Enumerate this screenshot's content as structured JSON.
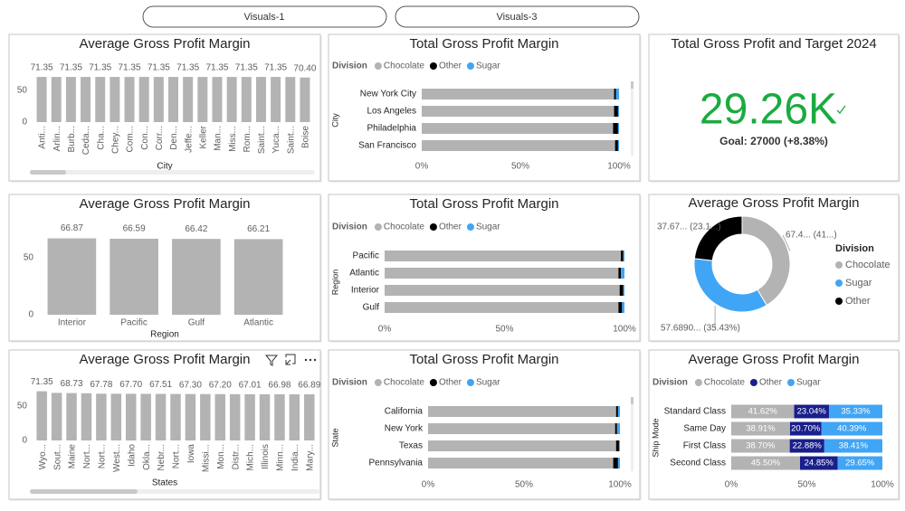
{
  "buttons": [
    "Visuals-1",
    "Visuals-3"
  ],
  "chart_data": [
    {
      "type": "bar",
      "title": "Average Gross Profit Margin",
      "x_label": "City",
      "categories": [
        "Anti...",
        "Arlin...",
        "Burb...",
        "Ceda...",
        "Cha...",
        "Chey...",
        "Com...",
        "Con...",
        "Corr...",
        "Den...",
        "Jeffe...",
        "Keller",
        "Man...",
        "Miss...",
        "Rom...",
        "Saint...",
        "Yuca...",
        "Saint...",
        "Boise"
      ],
      "values": [
        71.35,
        71.35,
        71.35,
        71.35,
        71.35,
        71.35,
        71.35,
        71.35,
        71.35,
        71.35,
        71.35,
        71.35,
        71.35,
        71.35,
        71.35,
        71.35,
        71.35,
        71.2,
        70.4
      ],
      "value_labels": [
        "71.35",
        null,
        "71.35",
        null,
        "71.35",
        null,
        "71.35",
        null,
        "71.35",
        null,
        "71.35",
        null,
        "71.35",
        null,
        "71.35",
        null,
        "71.35",
        null,
        "70.40"
      ],
      "color": "#b3b3b3",
      "ylim": [
        0,
        80
      ],
      "yticks": [
        0,
        50
      ]
    },
    {
      "type": "stacked_bar_100",
      "title": "Total Gross Profit Margin",
      "legend_title": "Division",
      "y_label": "City",
      "categories": [
        "New York City",
        "Los Angeles",
        "Philadelphia",
        "San Francisco"
      ],
      "series": [
        {
          "name": "Chocolate",
          "color": "#b3b3b3",
          "values": [
            97.5,
            97.5,
            97,
            98
          ]
        },
        {
          "name": "Other",
          "color": "#000000",
          "values": [
            1,
            2,
            2.5,
            1.5
          ]
        },
        {
          "name": "Sugar",
          "color": "#41a5f5",
          "values": [
            1.5,
            0.5,
            0.5,
            0.5
          ]
        }
      ],
      "xlim": [
        0,
        100
      ],
      "xticks": [
        {
          "value": 0,
          "label": "0%"
        },
        {
          "value": 50,
          "label": "50%"
        },
        {
          "value": 100,
          "label": "100%"
        }
      ]
    },
    {
      "type": "card",
      "title": "Total Gross Profit and Target 2024",
      "value": 29260,
      "value_label": "29.26K",
      "goal": "Goal: 27000 (+8.38%)",
      "color": "#1aab40"
    },
    {
      "type": "bar",
      "title": "Average Gross Profit Margin",
      "x_label": "Region",
      "categories": [
        "Interior",
        "Pacific",
        "Gulf",
        "Atlantic"
      ],
      "values": [
        66.87,
        66.59,
        66.42,
        66.21
      ],
      "color": "#b3b3b3",
      "ylim": [
        0,
        80
      ],
      "yticks": [
        0,
        50
      ]
    },
    {
      "type": "stacked_bar_100",
      "title": "Total Gross Profit Margin",
      "legend_title": "Division",
      "y_label": "Region",
      "categories": [
        "Pacific",
        "Atlantic",
        "Interior",
        "Gulf"
      ],
      "series": [
        {
          "name": "Chocolate",
          "color": "#b3b3b3",
          "values": [
            98.5,
            97.5,
            98,
            97.5
          ]
        },
        {
          "name": "Other",
          "color": "#000000",
          "values": [
            1,
            1,
            1.5,
            1.5
          ]
        },
        {
          "name": "Sugar",
          "color": "#41a5f5",
          "values": [
            0.5,
            1.5,
            0.5,
            1
          ]
        }
      ],
      "xlim": [
        0,
        100
      ],
      "xticks": [
        {
          "value": 0,
          "label": "0%"
        },
        {
          "value": 50,
          "label": "50%"
        },
        {
          "value": 100,
          "label": "100%"
        }
      ]
    },
    {
      "type": "donut",
      "title": "Average Gross Profit Margin",
      "legend_title": "Division",
      "categories": [
        "Chocolate",
        "Sugar",
        "Other"
      ],
      "values": [
        67.4,
        57.689,
        37.67
      ],
      "value_labels": [
        "67.4... (41...)",
        "57.6890... (35.43%)",
        "37.67... (23.1...)"
      ],
      "colors": [
        "#b3b3b3",
        "#41a5f5",
        "#000000"
      ]
    },
    {
      "type": "bar",
      "title": "Average Gross Profit Margin",
      "x_label": "States",
      "categories": [
        "Wyo...",
        "Sout...",
        "Maine",
        "Nort...",
        "Nort...",
        "West...",
        "Idaho",
        "Okla...",
        "Nebr...",
        "Nort...",
        "Iowa",
        "Missi...",
        "Mon...",
        "Distr...",
        "Mich...",
        "Illinois",
        "Minn...",
        "India...",
        "Mary..."
      ],
      "values": [
        71.35,
        69,
        68.73,
        68.5,
        67.78,
        67.75,
        67.7,
        67.6,
        67.51,
        67.4,
        67.3,
        67.25,
        67.2,
        67.1,
        67.01,
        67,
        66.98,
        66.9,
        66.89
      ],
      "value_labels": [
        "71.35",
        null,
        "68.73",
        null,
        "67.78",
        null,
        "67.70",
        null,
        "67.51",
        null,
        "67.30",
        null,
        "67.20",
        null,
        "67.01",
        null,
        "66.98",
        null,
        "66.89"
      ],
      "color": "#b3b3b3",
      "ylim": [
        0,
        80
      ],
      "yticks": [
        0,
        50
      ]
    },
    {
      "type": "stacked_bar_100",
      "title": "Total Gross Profit Margin",
      "legend_title": "Division",
      "y_label": "State",
      "categories": [
        "California",
        "New York",
        "Texas",
        "Pennsylvania"
      ],
      "series": [
        {
          "name": "Chocolate",
          "color": "#b3b3b3",
          "values": [
            98,
            97.5,
            98,
            96.5
          ]
        },
        {
          "name": "Other",
          "color": "#000000",
          "values": [
            1,
            1,
            1.5,
            2.5
          ]
        },
        {
          "name": "Sugar",
          "color": "#41a5f5",
          "values": [
            1,
            1.5,
            0.5,
            1
          ]
        }
      ],
      "xlim": [
        0,
        100
      ],
      "xticks": [
        {
          "value": 0,
          "label": "0%"
        },
        {
          "value": 50,
          "label": "50%"
        },
        {
          "value": 100,
          "label": "100%"
        }
      ]
    },
    {
      "type": "stacked_bar_100",
      "title": "Average Gross Profit Margin",
      "legend_title": "Division",
      "y_label": "Ship Mode",
      "categories": [
        "Standard Class",
        "Same Day",
        "First Class",
        "Second Class"
      ],
      "series": [
        {
          "name": "Chocolate",
          "color": "#b3b3b3",
          "values": [
            41.62,
            38.91,
            38.7,
            45.5
          ],
          "value_labels": [
            "41.62%",
            "38.91%",
            "38.70%",
            "45.50%"
          ]
        },
        {
          "name": "Other",
          "color": "#1a1f8c",
          "values": [
            23.04,
            20.7,
            22.88,
            24.85
          ],
          "value_labels": [
            "23.04%",
            "20.70%",
            "22.88%",
            "24.85%"
          ]
        },
        {
          "name": "Sugar",
          "color": "#41a5f5",
          "values": [
            35.33,
            40.39,
            38.41,
            29.65
          ],
          "value_labels": [
            "35.33%",
            "40.39%",
            "38.41%",
            "29.65%"
          ]
        }
      ],
      "xlim": [
        0,
        100
      ],
      "xticks": [
        {
          "value": 0,
          "label": "0%"
        },
        {
          "value": 50,
          "label": "50%"
        },
        {
          "value": 100,
          "label": "100%"
        }
      ]
    }
  ]
}
